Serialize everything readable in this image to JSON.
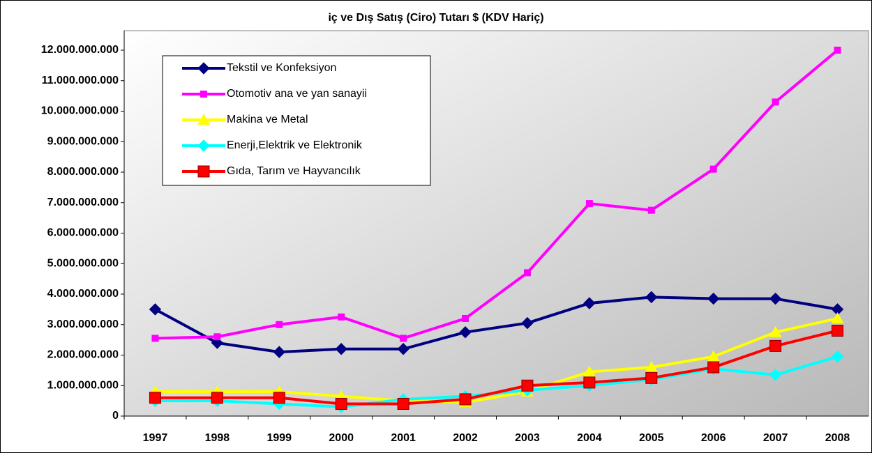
{
  "chart_data": {
    "type": "line",
    "title": "iç ve Dış Satış (Ciro) Tutarı $ (KDV Hariç)",
    "categories": [
      "1997",
      "1998",
      "1999",
      "2000",
      "2001",
      "2002",
      "2003",
      "2004",
      "2005",
      "2006",
      "2007",
      "2008"
    ],
    "series": [
      {
        "name": "Tekstil ve Konfeksiyon",
        "color": "#000080",
        "marker": "diamond",
        "values": [
          3500000000,
          2400000000,
          2100000000,
          2200000000,
          2200000000,
          2750000000,
          3050000000,
          3700000000,
          3900000000,
          3850000000,
          3850000000,
          3500000000
        ]
      },
      {
        "name": "Otomotiv ana ve yan sanayii",
        "color": "#ff00ff",
        "marker": "square",
        "values": [
          2550000000,
          2600000000,
          3000000000,
          3250000000,
          2550000000,
          3200000000,
          4700000000,
          6970000000,
          6750000000,
          8100000000,
          10300000000,
          12000000000
        ]
      },
      {
        "name": "Makina ve Metal",
        "color": "#ffff00",
        "marker": "triangle",
        "values": [
          800000000,
          800000000,
          800000000,
          650000000,
          500000000,
          450000000,
          800000000,
          1450000000,
          1600000000,
          1950000000,
          2750000000,
          3200000000
        ]
      },
      {
        "name": "Enerji,Elektrik ve Elektronik",
        "color": "#00ffff",
        "marker": "diamond",
        "values": [
          500000000,
          500000000,
          400000000,
          300000000,
          550000000,
          650000000,
          850000000,
          1000000000,
          1200000000,
          1550000000,
          1350000000,
          1950000000
        ]
      },
      {
        "name": "Gıda, Tarım ve Hayvancılık",
        "color": "#ff0000",
        "marker": "bigsquare",
        "values": [
          600000000,
          600000000,
          600000000,
          400000000,
          400000000,
          550000000,
          1000000000,
          1100000000,
          1250000000,
          1600000000,
          2300000000,
          2800000000
        ]
      }
    ],
    "ylim": [
      0,
      12000000000
    ],
    "yticks": [
      0,
      {
        "value": 1000000000,
        "label": "1.000.000.000"
      },
      {
        "value": 2000000000,
        "label": "2.000.000.000"
      },
      {
        "value": 3000000000,
        "label": "3.000.000.000"
      },
      {
        "value": 4000000000,
        "label": "4.000.000.000"
      },
      {
        "value": 5000000000,
        "label": "5.000.000.000"
      },
      {
        "value": 6000000000,
        "label": "6.000.000.000"
      },
      {
        "value": 7000000000,
        "label": "7.000.000.000"
      },
      {
        "value": 8000000000,
        "label": "8.000.000.000"
      },
      {
        "value": 9000000000,
        "label": "9.000.000.000"
      },
      {
        "value": 10000000000,
        "label": "10.000.000.000"
      },
      {
        "value": 11000000000,
        "label": "11.000.000.000"
      },
      {
        "value": 12000000000,
        "label": "12.000.000.000"
      }
    ],
    "legend": "top-left"
  }
}
